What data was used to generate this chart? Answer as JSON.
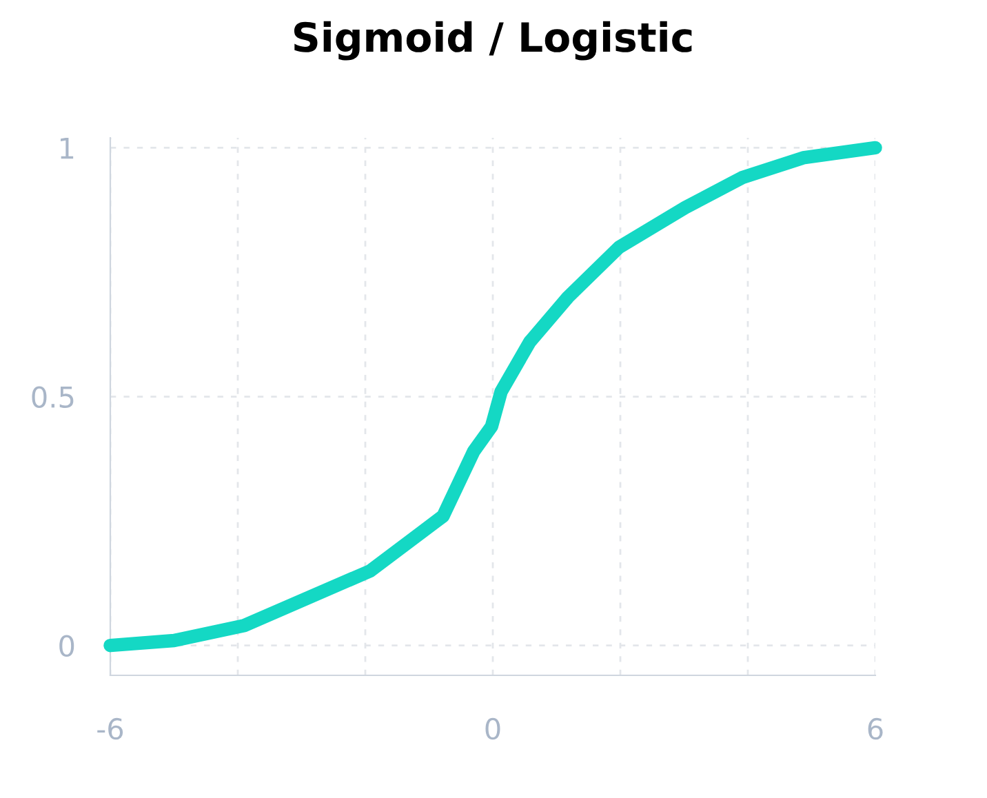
{
  "chart_data": {
    "type": "line",
    "title": "Sigmoid / Logistic",
    "x": [
      -6,
      -5,
      -3.9,
      -1.92,
      -0.78,
      -0.3,
      -0.02,
      0.13,
      0.58,
      1.18,
      1.98,
      3.02,
      3.91,
      4.87,
      6
    ],
    "series": [
      {
        "color": "#14d8c4",
        "values": [
          0,
          0.01,
          0.04,
          0.15,
          0.26,
          0.39,
          0.44,
          0.51,
          0.61,
          0.7,
          0.8,
          0.88,
          0.94,
          0.98,
          1
        ]
      }
    ],
    "xlim": [
      -6,
      6
    ],
    "ylim": [
      -0.06,
      1.02
    ],
    "xticks": [
      -6,
      {
        "value": -4,
        "label": null
      },
      {
        "value": -2,
        "label": null
      },
      0,
      {
        "value": 2,
        "label": null
      },
      {
        "value": 4,
        "label": null
      },
      6
    ],
    "yticks": [
      0,
      0.5,
      1
    ],
    "grid": true,
    "marker": "none",
    "line_style": "solid"
  }
}
